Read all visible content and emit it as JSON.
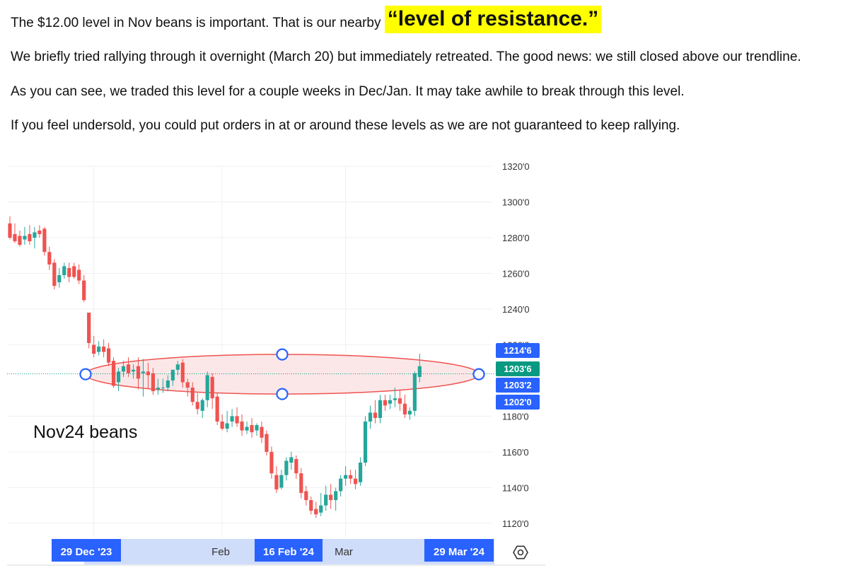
{
  "text": {
    "p1_main": "The $12.00 level in Nov beans is important. That is our nearby ",
    "p1_highlight": "“level of resistance.”",
    "p2": "We briefly tried rallying through it overnight (March 20) but immediately retreated. The good news: we still closed above our trendline.",
    "p3": "As you can see, we traded this level for a couple weeks in Dec/Jan. It may take awhile to break through this level.",
    "p4": "If you feel undersold, you could put orders in at or around these levels as we are not guaranteed to keep rallying."
  },
  "colors": {
    "up": "#26a69a",
    "down": "#ef5350",
    "highlight": "#ffff00",
    "badge_blue": "#2962ff",
    "badge_green": "#089981",
    "ellipse_fill": "#fbe4e6",
    "ellipse_stroke": "#ef5350"
  },
  "chart_data": {
    "type": "candlestick",
    "series_label": "Nov24 beans",
    "ylim": [
      1112,
      1324
    ],
    "y_ticks": [
      "1320'0",
      "1300'0",
      "1280'0",
      "1260'0",
      "1240'0",
      "1220'0",
      "1180'0",
      "1160'0",
      "1140'0",
      "1120'0"
    ],
    "y_tick_values": [
      1320,
      1300,
      1280,
      1260,
      1240,
      1220,
      1180,
      1160,
      1140,
      1120
    ],
    "x_labels": [
      "Feb",
      "Mar"
    ],
    "date_badges": [
      "29 Dec '23",
      "16 Feb '24",
      "29 Mar '24"
    ],
    "price_badges": [
      {
        "text": "1214'6",
        "value": 1214.75,
        "color": "blue"
      },
      {
        "text": "1203'6",
        "value": 1203.75,
        "color": "green"
      },
      {
        "text": "1203'2",
        "value": 1203.25,
        "color": "blue"
      },
      {
        "text": "1202'0",
        "value": 1202.0,
        "color": "blue"
      }
    ],
    "last_price": 1203.75,
    "annotation": "ellipse around the 1200 resistance level",
    "settings_icon": "gear-icon",
    "candles": [
      [
        1288,
        1292,
        1280,
        1279
      ],
      [
        1282,
        1288,
        1278,
        1277
      ],
      [
        1281,
        1284,
        1276,
        1275
      ],
      [
        1279,
        1286,
        1281,
        1276
      ],
      [
        1282,
        1287,
        1278,
        1276
      ],
      [
        1280,
        1286,
        1283,
        1274
      ],
      [
        1284,
        1287,
        1282,
        1280
      ],
      [
        1285,
        1286,
        1272,
        1270
      ],
      [
        1272,
        1275,
        1265,
        1262
      ],
      [
        1266,
        1268,
        1253,
        1251
      ],
      [
        1255,
        1263,
        1259,
        1252
      ],
      [
        1259,
        1266,
        1264,
        1257
      ],
      [
        1263,
        1266,
        1258,
        1255
      ],
      [
        1264,
        1266,
        1258,
        1257
      ],
      [
        1262,
        1265,
        1256,
        1254
      ],
      [
        1256,
        1259,
        1245,
        1244
      ],
      [
        1238,
        1238,
        1221,
        1218
      ],
      [
        1220,
        1225,
        1215,
        1213
      ],
      [
        1216,
        1222,
        1219,
        1214
      ],
      [
        1219,
        1223,
        1216,
        1213
      ],
      [
        1218,
        1221,
        1210,
        1208
      ],
      [
        1211,
        1213,
        1197,
        1196
      ],
      [
        1199,
        1207,
        1205,
        1194
      ],
      [
        1205,
        1211,
        1208,
        1202
      ],
      [
        1209,
        1213,
        1204,
        1202
      ],
      [
        1205,
        1209,
        1206,
        1201
      ],
      [
        1208,
        1213,
        1201,
        1195
      ],
      [
        1204,
        1212,
        1205,
        1191
      ],
      [
        1205,
        1210,
        1203,
        1195
      ],
      [
        1204,
        1207,
        1194,
        1192
      ],
      [
        1195,
        1201,
        1196,
        1192
      ],
      [
        1196,
        1201,
        1196,
        1193
      ],
      [
        1196,
        1203,
        1200,
        1194
      ],
      [
        1200,
        1206,
        1206,
        1197
      ],
      [
        1206,
        1211,
        1209,
        1203
      ],
      [
        1210,
        1212,
        1199,
        1196
      ],
      [
        1199,
        1201,
        1196,
        1191
      ],
      [
        1196,
        1199,
        1188,
        1186
      ],
      [
        1188,
        1193,
        1184,
        1181
      ],
      [
        1183,
        1190,
        1189,
        1179
      ],
      [
        1189,
        1205,
        1203,
        1185
      ],
      [
        1202,
        1204,
        1190,
        1184
      ],
      [
        1191,
        1193,
        1177,
        1175
      ],
      [
        1177,
        1181,
        1173,
        1172
      ],
      [
        1173,
        1183,
        1176,
        1171
      ],
      [
        1177,
        1184,
        1180,
        1174
      ],
      [
        1180,
        1185,
        1176,
        1174
      ],
      [
        1177,
        1181,
        1172,
        1169
      ],
      [
        1172,
        1177,
        1174,
        1170
      ],
      [
        1175,
        1179,
        1171,
        1168
      ],
      [
        1172,
        1176,
        1175,
        1169
      ],
      [
        1174,
        1177,
        1168,
        1165
      ],
      [
        1170,
        1172,
        1160,
        1158
      ],
      [
        1160,
        1163,
        1148,
        1145
      ],
      [
        1147,
        1152,
        1139,
        1137
      ],
      [
        1140,
        1150,
        1147,
        1139
      ],
      [
        1147,
        1157,
        1155,
        1144
      ],
      [
        1154,
        1160,
        1157,
        1150
      ],
      [
        1156,
        1158,
        1148,
        1145
      ],
      [
        1148,
        1151,
        1137,
        1134
      ],
      [
        1138,
        1141,
        1133,
        1130
      ],
      [
        1133,
        1135,
        1127,
        1125
      ],
      [
        1128,
        1132,
        1125,
        1123
      ],
      [
        1126,
        1137,
        1130,
        1124
      ],
      [
        1130,
        1141,
        1136,
        1127
      ],
      [
        1136,
        1142,
        1133,
        1128
      ],
      [
        1133,
        1140,
        1138,
        1127
      ],
      [
        1138,
        1147,
        1145,
        1135
      ],
      [
        1145,
        1152,
        1147,
        1141
      ],
      [
        1147,
        1150,
        1145,
        1142
      ],
      [
        1145,
        1150,
        1142,
        1139
      ],
      [
        1143,
        1157,
        1154,
        1141
      ],
      [
        1154,
        1180,
        1177,
        1152
      ],
      [
        1177,
        1186,
        1182,
        1173
      ],
      [
        1182,
        1189,
        1179,
        1176
      ],
      [
        1179,
        1192,
        1189,
        1176
      ],
      [
        1189,
        1192,
        1186,
        1183
      ],
      [
        1187,
        1192,
        1189,
        1184
      ],
      [
        1189,
        1196,
        1190,
        1185
      ],
      [
        1190,
        1195,
        1187,
        1183
      ],
      [
        1187,
        1192,
        1181,
        1179
      ],
      [
        1181,
        1185,
        1183,
        1178
      ],
      [
        1183,
        1205,
        1204,
        1180
      ],
      [
        1202,
        1215,
        1208,
        1199
      ]
    ]
  }
}
